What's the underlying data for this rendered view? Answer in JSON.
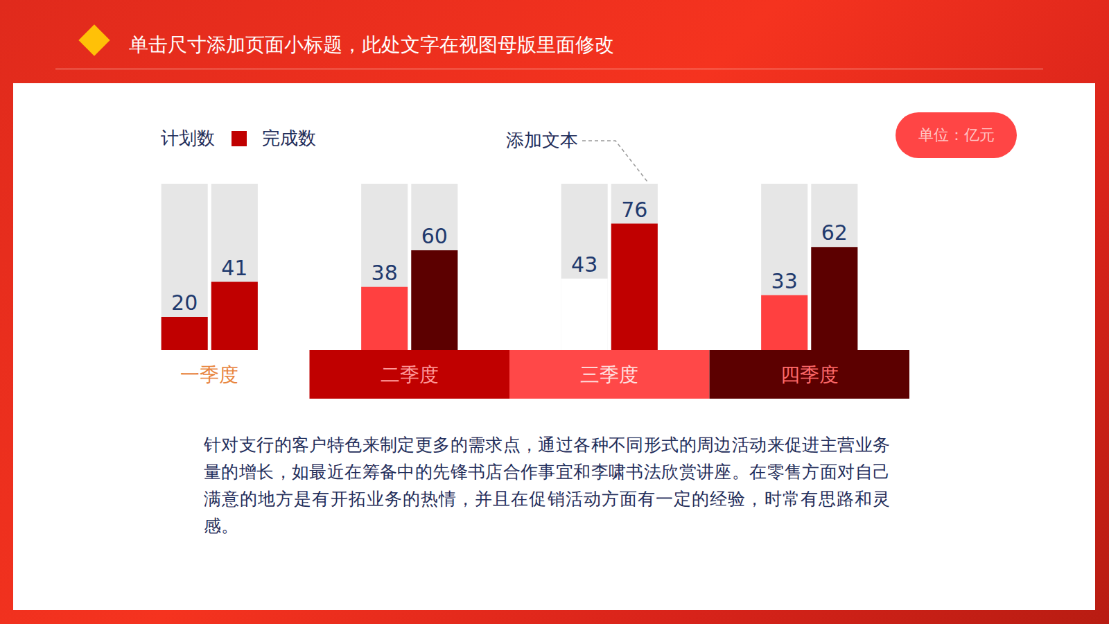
{
  "header": {
    "title": "单击尺寸添加页面小标题，此处文字在视图母版里面修改"
  },
  "badge": "单位：亿元",
  "chart_data": {
    "type": "bar",
    "categories": [
      "一季度",
      "二季度",
      "三季度",
      "四季度"
    ],
    "series": [
      {
        "name": "计划数",
        "color": "#ffffff",
        "colors": [
          "#c00000",
          "#ff4040",
          "#ffffff",
          "#ff4040"
        ],
        "values": [
          20,
          38,
          43,
          33
        ]
      },
      {
        "name": "完成数",
        "color": "#c00000",
        "colors": [
          "#c00000",
          "#5c0000",
          "#c00000",
          "#5c0000"
        ],
        "values": [
          41,
          60,
          76,
          62
        ]
      }
    ],
    "ylim": [
      0,
      100
    ],
    "yticks": [],
    "tick_labels": false,
    "data_labels": true,
    "legend": "top-left",
    "annotations": [
      "添加文本"
    ]
  },
  "body": {
    "paragraph": "针对支行的客户特色来制定更多的需求点，通过各种不同形式的周边活动来促进主营业务量的增长，如最近在筹备中的先锋书店合作事宜和李啸书法欣赏讲座。在零售方面对自己满意的地方是有开拓业务的热情，并且在促销活动方面有一定的经验，时常有思路和灵感。"
  }
}
